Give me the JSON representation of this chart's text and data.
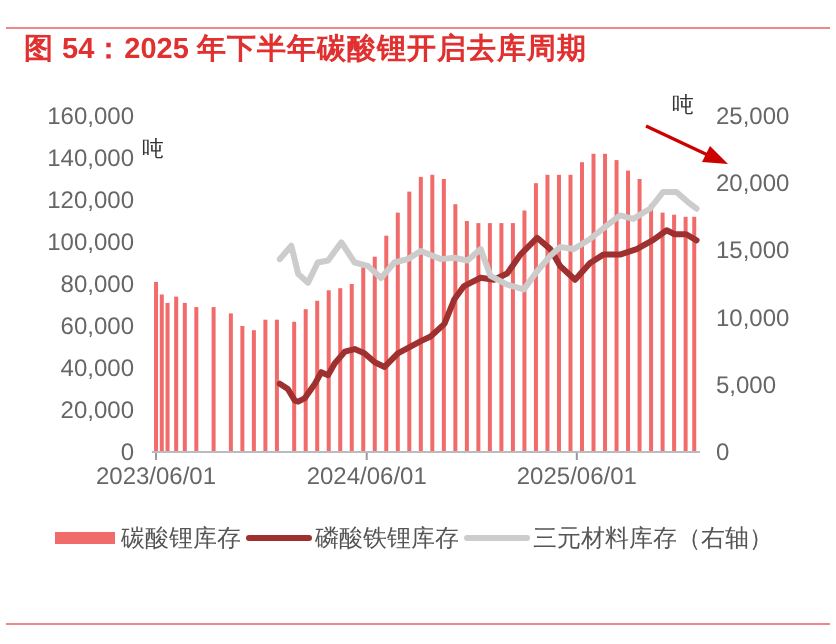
{
  "chart_data": {
    "type": "bar",
    "title": "图 54：2025 年下半年碳酸锂开启去库周期",
    "ylabel": "吨",
    "y2label": "吨",
    "xlim": [
      "2023-05-25",
      "2026-01-01"
    ],
    "xticks": [
      {
        "value": "2023-06-01",
        "label": "2023/06/01"
      },
      {
        "value": "2024-06-01",
        "label": "2024/06/01"
      },
      {
        "value": "2025-06-01",
        "label": "2025/06/01"
      }
    ],
    "ylim": [
      0,
      160000
    ],
    "yticks": [
      {
        "value": 0,
        "label": "0"
      },
      {
        "value": 20000,
        "label": "20,000"
      },
      {
        "value": 40000,
        "label": "40,000"
      },
      {
        "value": 60000,
        "label": "60,000"
      },
      {
        "value": 80000,
        "label": "80,000"
      },
      {
        "value": 100000,
        "label": "100,000"
      },
      {
        "value": 120000,
        "label": "120,000"
      },
      {
        "value": 140000,
        "label": "140,000"
      },
      {
        "value": 160000,
        "label": "160,000"
      }
    ],
    "y2lim": [
      0,
      25000
    ],
    "y2ticks": [
      {
        "value": 0,
        "label": "0"
      },
      {
        "value": 5000,
        "label": "5,000"
      },
      {
        "value": 10000,
        "label": "10,000"
      },
      {
        "value": 15000,
        "label": "15,000"
      },
      {
        "value": 20000,
        "label": "20,000"
      },
      {
        "value": 25000,
        "label": "25,000"
      }
    ],
    "legend": "bottom",
    "grid": false,
    "series": [
      {
        "name": "碳酸锂库存",
        "color": "#f26b6b",
        "x": [
          "2023-06-01",
          "2023-06-11",
          "2023-06-21",
          "2023-07-06",
          "2023-07-21",
          "2023-08-10",
          "2023-09-09",
          "2023-10-09",
          "2023-10-29",
          "2023-11-18",
          "2023-12-08",
          "2023-12-28",
          "2024-01-27",
          "2024-02-16",
          "2024-03-07",
          "2024-03-27",
          "2024-04-16",
          "2024-05-06",
          "2024-05-26",
          "2024-06-15",
          "2024-07-05",
          "2024-07-25",
          "2024-08-14",
          "2024-09-03",
          "2024-09-23",
          "2024-10-13",
          "2024-11-02",
          "2024-11-22",
          "2024-12-12",
          "2025-01-01",
          "2025-01-21",
          "2025-02-10",
          "2025-03-02",
          "2025-03-22",
          "2025-04-11",
          "2025-05-01",
          "2025-05-21",
          "2025-06-10",
          "2025-06-30",
          "2025-07-20",
          "2025-08-09",
          "2025-08-29",
          "2025-09-18",
          "2025-10-08",
          "2025-10-28",
          "2025-11-17",
          "2025-12-07",
          "2025-12-22"
        ],
        "values": [
          81000,
          75000,
          71000,
          74000,
          71000,
          69000,
          69000,
          66000,
          60000,
          58000,
          63000,
          63000,
          62000,
          68000,
          72000,
          77000,
          78000,
          80000,
          88000,
          93000,
          103000,
          114000,
          124000,
          131000,
          132000,
          130000,
          118000,
          110000,
          109000,
          109000,
          109000,
          109000,
          115000,
          128000,
          132000,
          132000,
          132000,
          138000,
          142000,
          142000,
          139000,
          134000,
          130000,
          118000,
          114000,
          113000,
          112000,
          112000
        ]
      },
      {
        "name": "磷酸铁锂库存",
        "type": "line",
        "color": "#9e3030",
        "x": [
          "2024-01-02",
          "2024-01-16",
          "2024-01-28",
          "2024-02-03",
          "2024-02-14",
          "2024-03-03",
          "2024-03-14",
          "2024-03-26",
          "2024-04-06",
          "2024-04-24",
          "2024-05-11",
          "2024-05-28",
          "2024-06-15",
          "2024-07-02",
          "2024-07-25",
          "2024-09-03",
          "2024-09-20",
          "2024-10-14",
          "2024-10-31",
          "2024-11-17",
          "2024-12-16",
          "2025-01-08",
          "2025-01-31",
          "2025-02-23",
          "2025-03-24",
          "2025-04-16",
          "2025-05-03",
          "2025-05-29",
          "2025-06-24",
          "2025-07-17",
          "2025-08-15",
          "2025-09-13",
          "2025-10-12",
          "2025-11-04",
          "2025-11-18",
          "2025-12-08",
          "2025-12-26"
        ],
        "values": [
          32500,
          30000,
          24500,
          24000,
          25500,
          32500,
          38000,
          36600,
          42000,
          47800,
          49000,
          47000,
          42700,
          40500,
          47000,
          52800,
          55000,
          61000,
          72600,
          79000,
          83000,
          82000,
          85000,
          94000,
          102000,
          96600,
          88600,
          82000,
          90000,
          94000,
          94000,
          96600,
          101000,
          105600,
          103700,
          103700,
          100800
        ]
      },
      {
        "name": "三元材料库存（右轴）",
        "type": "line",
        "axis": "y2",
        "color": "#cccccc",
        "x": [
          "2024-01-02",
          "2024-01-22",
          "2024-02-03",
          "2024-02-20",
          "2024-03-08",
          "2024-03-26",
          "2024-04-18",
          "2024-05-11",
          "2024-06-03",
          "2024-06-26",
          "2024-07-19",
          "2024-08-11",
          "2024-09-03",
          "2024-10-08",
          "2024-10-31",
          "2024-11-23",
          "2024-12-16",
          "2025-01-02",
          "2025-01-31",
          "2025-03-01",
          "2025-03-24",
          "2025-04-16",
          "2025-05-03",
          "2025-05-27",
          "2025-06-24",
          "2025-07-23",
          "2025-08-15",
          "2025-09-07",
          "2025-10-06",
          "2025-10-29",
          "2025-11-21",
          "2025-12-11",
          "2025-12-26"
        ],
        "values": [
          14350,
          15350,
          13250,
          12600,
          14100,
          14250,
          15600,
          14100,
          13850,
          12950,
          14100,
          14350,
          14950,
          14350,
          14450,
          14250,
          15100,
          13100,
          12450,
          12100,
          13450,
          14600,
          15250,
          15100,
          15850,
          16850,
          17600,
          17350,
          18100,
          19350,
          19350,
          18600,
          18100
        ]
      }
    ]
  }
}
